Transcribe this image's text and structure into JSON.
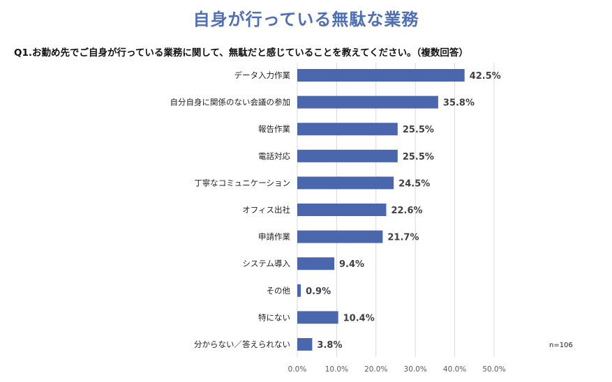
{
  "colors": {
    "title": "#4f6fb5",
    "bar": "#4a66ac",
    "grid": "#d9d9d9"
  },
  "chart_data": {
    "type": "bar",
    "orientation": "horizontal",
    "title": "自身が行っている無駄な業務",
    "subtitle": "Q1.お勤め先でご自身が行っている業務に関して、無駄だと感じていることを教えてください。（複数回答）",
    "categories": [
      "データ入力作業",
      "自分自身に関係のない会議の参加",
      "報告作業",
      "電話対応",
      "丁寧なコミュニケーション",
      "オフィス出社",
      "申請作業",
      "システム導入",
      "その他",
      "特にない",
      "分からない／答えられない"
    ],
    "values": [
      42.5,
      35.8,
      25.5,
      25.5,
      24.5,
      22.6,
      21.7,
      9.4,
      0.9,
      10.4,
      3.8
    ],
    "value_labels": [
      "42.5%",
      "35.8%",
      "25.5%",
      "25.5%",
      "24.5%",
      "22.6%",
      "21.7%",
      "9.4%",
      "0.9%",
      "10.4%",
      "3.8%"
    ],
    "xlim": [
      0,
      50
    ],
    "x_ticks": [
      0,
      10,
      20,
      30,
      40,
      50
    ],
    "x_tick_labels": [
      "0.0%",
      "10.0%",
      "20.0%",
      "30.0%",
      "40.0%",
      "50.0%"
    ],
    "grid": true,
    "note": "n=106"
  }
}
